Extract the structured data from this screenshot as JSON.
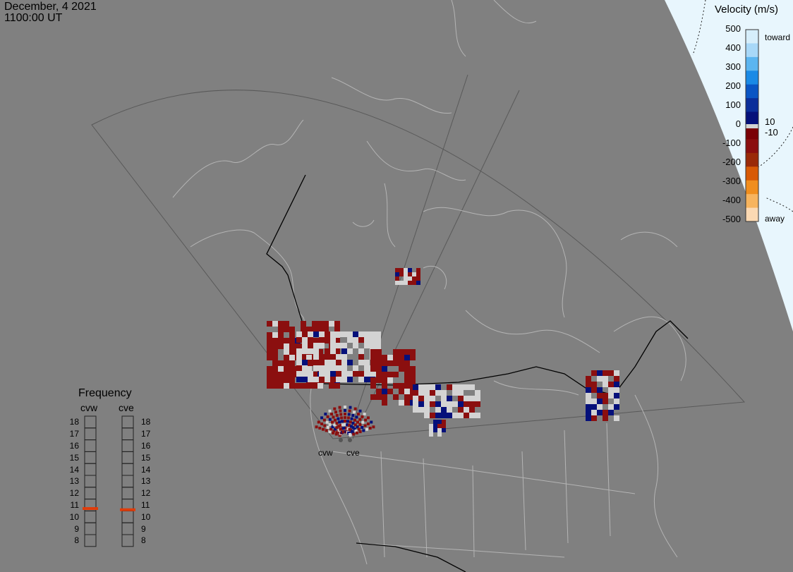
{
  "header": {
    "date": "December, 4 2021",
    "time": "1100:00 UT"
  },
  "velocity_scale": {
    "title": "Velocity (m/s)",
    "ticks": [
      "500",
      "400",
      "300",
      "200",
      "100",
      "0",
      "-100",
      "-200",
      "-300",
      "-400",
      "-500"
    ],
    "toward_label": "toward",
    "away_label": "away",
    "pos_threshold": "10",
    "neg_threshold": "-10",
    "colors": [
      "#d6eefb",
      "#a8d8f8",
      "#5bb5f0",
      "#1a8ae6",
      "#0a55c4",
      "#0b2e9a",
      "#05107a",
      "#7a0006",
      "#8b0f0f",
      "#9a2a08",
      "#d85a06",
      "#f08e1e",
      "#f7b45e",
      "#fbd9b3"
    ]
  },
  "frequency_panel": {
    "title": "Frequency",
    "radars": [
      "cvw",
      "cve"
    ],
    "levels": [
      "18",
      "17",
      "16",
      "15",
      "14",
      "13",
      "12",
      "11",
      "10",
      "9",
      "8"
    ],
    "cvw_mhz": 10.7,
    "cve_mhz": 10.6,
    "marker_color": "#e03c0a"
  },
  "sites": [
    "cvw",
    "cve"
  ],
  "colors": {
    "background": "#808080",
    "coastline": "#b4b4b4",
    "fov_outline": "#595959",
    "border": "#000000",
    "daylight": "#e8f6fd",
    "low_velocity": "#d3d3d3"
  }
}
